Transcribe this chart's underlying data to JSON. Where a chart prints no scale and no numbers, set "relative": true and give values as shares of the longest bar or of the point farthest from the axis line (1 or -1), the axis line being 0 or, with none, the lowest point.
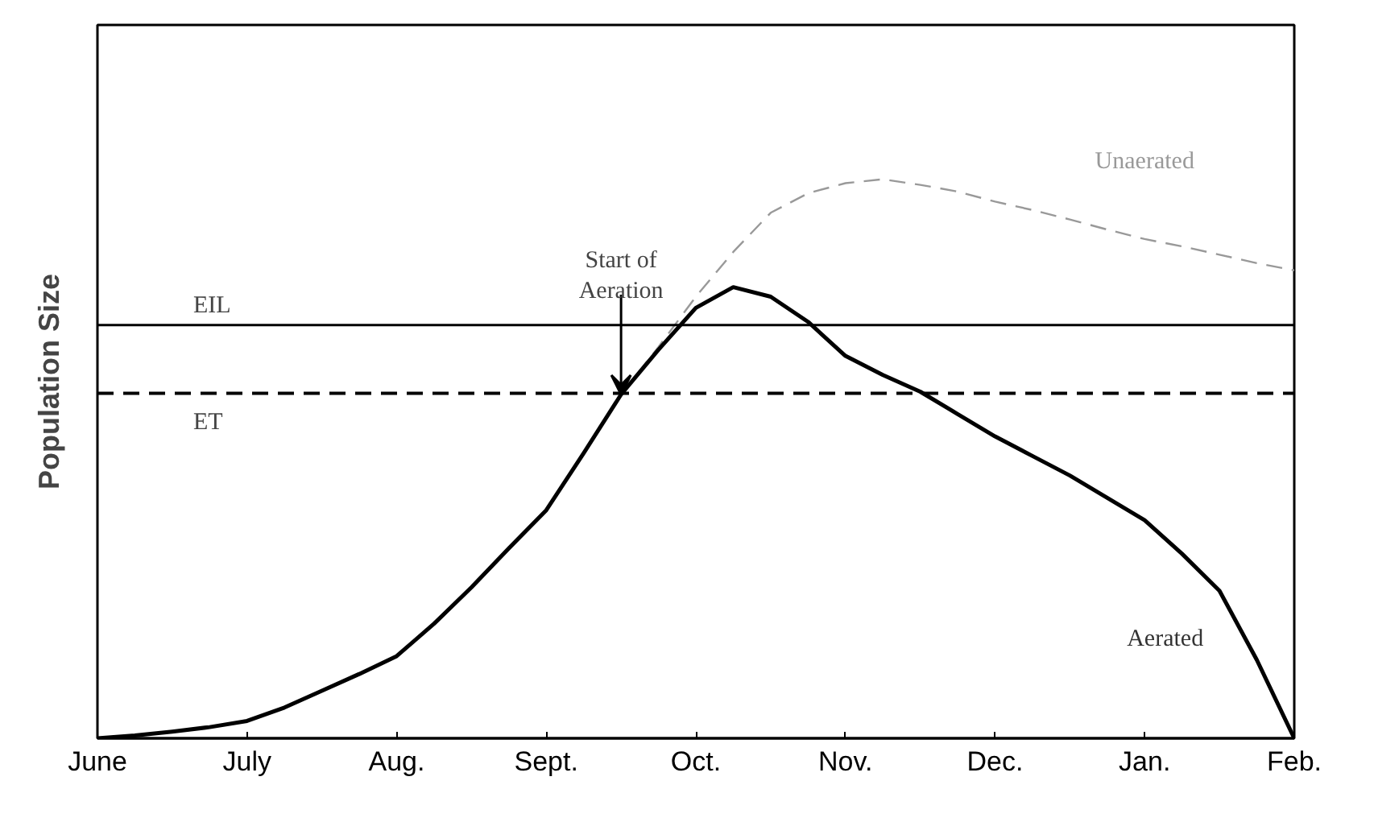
{
  "chart_data": {
    "type": "line",
    "relative": true,
    "ylabel": "Population Size",
    "categories": [
      "June",
      null,
      null,
      null,
      "July",
      null,
      null,
      null,
      "Aug.",
      null,
      null,
      null,
      "Sept.",
      null,
      null,
      null,
      "Oct.",
      null,
      null,
      null,
      "Nov.",
      null,
      null,
      null,
      "Dec.",
      null,
      null,
      null,
      "Jan.",
      null,
      null,
      null,
      "Feb."
    ],
    "series": [
      {
        "name": "Unaerated",
        "color": "#999999",
        "line_style": "dashed",
        "values": [
          null,
          null,
          null,
          null,
          null,
          null,
          null,
          null,
          null,
          null,
          null,
          null,
          null,
          null,
          0.615,
          0.7,
          0.79,
          0.87,
          0.94,
          0.975,
          0.993,
          1.0,
          0.99,
          0.978,
          0.96,
          0.945,
          0.928,
          0.91,
          0.893,
          0.88,
          0.865,
          0.85,
          0.837
        ]
      },
      {
        "name": "Aerated",
        "color": "#000000",
        "line_style": "solid",
        "values": [
          0,
          0.005,
          0.012,
          0.02,
          0.031,
          0.055,
          0.085,
          0.115,
          0.147,
          0.205,
          0.27,
          0.34,
          0.408,
          0.51,
          0.615,
          0.695,
          0.77,
          0.807,
          0.79,
          0.745,
          0.684,
          0.65,
          0.62,
          0.58,
          0.54,
          0.505,
          0.47,
          0.43,
          0.39,
          0.33,
          0.264,
          0.14,
          0
        ]
      }
    ],
    "ref_lines": [
      {
        "axis": "y",
        "value": 0.739,
        "label": "EIL",
        "color": "#000000",
        "line_style": "solid"
      },
      {
        "axis": "y",
        "value": 0.617,
        "label": "ET",
        "color": "#000000",
        "line_style": "dashed"
      }
    ],
    "annotations": [
      "Start of\nAeration"
    ],
    "grid": false,
    "tick_labels": "x",
    "marker": "none"
  }
}
